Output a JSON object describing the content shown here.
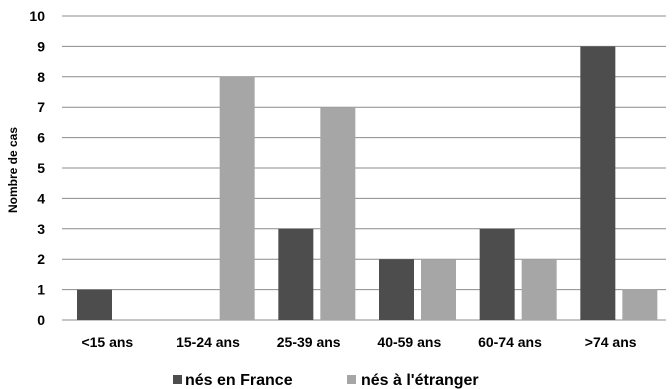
{
  "chart_data": {
    "type": "bar",
    "title": "",
    "xlabel": "",
    "ylabel": "Nombre de cas",
    "ylim": [
      0,
      10
    ],
    "yticks": [
      "0",
      "1",
      "2",
      "3",
      "4",
      "5",
      "6",
      "7",
      "8",
      "9",
      "10"
    ],
    "grid": true,
    "legend_position": "bottom",
    "categories": [
      "<15 ans",
      "15-24 ans",
      "25-39 ans",
      "40-59 ans",
      "60-74 ans",
      ">74 ans"
    ],
    "series": [
      {
        "name": "nés en France",
        "color": "#4d4d4d",
        "values": [
          1,
          0,
          3,
          2,
          3,
          9
        ]
      },
      {
        "name": "nés à l'étranger",
        "color": "#a6a6a6",
        "values": [
          0,
          8,
          7,
          2,
          2,
          1
        ]
      }
    ]
  }
}
